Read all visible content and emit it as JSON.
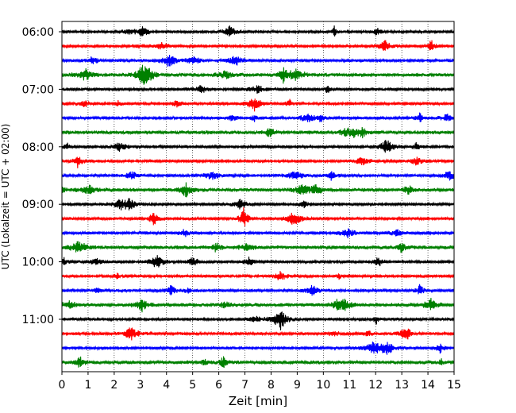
{
  "chart_data": {
    "type": "line",
    "title": "",
    "xlabel": "Zeit  [min]",
    "ylabel": "UTC (Lokalzeit = UTC + 02:00)",
    "xlim": [
      0,
      15
    ],
    "x_ticks": [
      "0",
      "1",
      "2",
      "3",
      "4",
      "5",
      "6",
      "7",
      "8",
      "9",
      "10",
      "11",
      "12",
      "13",
      "14",
      "15"
    ],
    "y_ticks": [
      "06:00",
      "07:00",
      "08:00",
      "09:00",
      "10:00",
      "11:00"
    ],
    "grid": {
      "x": true,
      "y": false
    },
    "trace_interval_min": 15,
    "trace_colors": [
      "#000000",
      "#ff0000",
      "#0000ff",
      "#008000"
    ],
    "traces": [
      {
        "start": "06:00",
        "color": "#000000"
      },
      {
        "start": "06:15",
        "color": "#ff0000"
      },
      {
        "start": "06:30",
        "color": "#0000ff"
      },
      {
        "start": "06:45",
        "color": "#008000"
      },
      {
        "start": "07:00",
        "color": "#000000"
      },
      {
        "start": "07:15",
        "color": "#ff0000"
      },
      {
        "start": "07:30",
        "color": "#0000ff"
      },
      {
        "start": "07:45",
        "color": "#008000"
      },
      {
        "start": "08:00",
        "color": "#000000"
      },
      {
        "start": "08:15",
        "color": "#ff0000"
      },
      {
        "start": "08:30",
        "color": "#0000ff"
      },
      {
        "start": "08:45",
        "color": "#008000"
      },
      {
        "start": "09:00",
        "color": "#000000"
      },
      {
        "start": "09:15",
        "color": "#ff0000"
      },
      {
        "start": "09:30",
        "color": "#0000ff"
      },
      {
        "start": "09:45",
        "color": "#008000"
      },
      {
        "start": "10:00",
        "color": "#000000"
      },
      {
        "start": "10:15",
        "color": "#ff0000"
      },
      {
        "start": "10:30",
        "color": "#0000ff"
      },
      {
        "start": "10:45",
        "color": "#008000"
      },
      {
        "start": "11:00",
        "color": "#000000"
      },
      {
        "start": "11:15",
        "color": "#ff0000"
      },
      {
        "start": "11:30",
        "color": "#0000ff"
      },
      {
        "start": "11:45",
        "color": "#008000"
      }
    ]
  }
}
